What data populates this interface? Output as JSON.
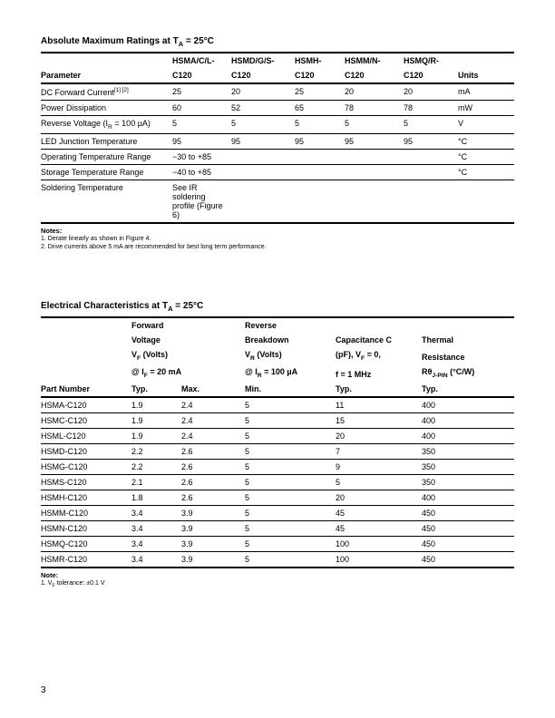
{
  "abs": {
    "title_prefix": "Absolute Maximum Ratings at T",
    "title_sub": "A",
    "title_suffix": " = 25°C",
    "headers": {
      "param": "Parameter",
      "c1a": "HSMA/C/L-",
      "c1b": "C120",
      "c2a": "HSMD/G/S-",
      "c2b": "C120",
      "c3a": "HSMH-",
      "c3b": "C120",
      "c4a": "HSMM/N-",
      "c4b": "C120",
      "c5a": "HSMQ/R-",
      "c5b": "C120",
      "units": "Units"
    },
    "rows": [
      {
        "p_pre": "DC Forward Current",
        "p_sup": "[1] [2]",
        "c1": "25",
        "c2": "20",
        "c3": "25",
        "c4": "20",
        "c5": "20",
        "u": "mA"
      },
      {
        "p": "Power Dissipation",
        "c1": "60",
        "c2": "52",
        "c3": "65",
        "c4": "78",
        "c5": "78",
        "u": "mW"
      },
      {
        "p_pre": "Reverse Voltage (I",
        "p_sub": "R",
        "p_suf": " = 100 µA)",
        "c1": "5",
        "c2": "5",
        "c3": "5",
        "c4": "5",
        "c5": "5",
        "u": "V"
      },
      {
        "p": "LED Junction Temperature",
        "c1": "95",
        "c2": "95",
        "c3": "95",
        "c4": "95",
        "c5": "95",
        "u": "°C"
      },
      {
        "p": "Operating Temperature Range",
        "c1": "−30 to +85",
        "u": "°C"
      },
      {
        "p": "Storage Temperature Range",
        "c1": "−40 to +85",
        "u": "°C"
      },
      {
        "p": "Soldering Temperature",
        "c1": "See IR soldering profile (Figure 6)"
      }
    ],
    "notes_title": "Notes:",
    "note1": "1.  Derate linearly as shown in Figure 4.",
    "note2": "2.  Drive currents above 5 mA are recommended for best long term performance."
  },
  "elec": {
    "title_prefix": "Electrical Characteristics at T",
    "title_sub": "A",
    "title_suffix": " = 25°C",
    "headers": {
      "pn": "Part Number",
      "fv1": "Forward",
      "fv2": "Voltage",
      "fv3a": "V",
      "fv3b": "F",
      "fv3c": " (Volts)",
      "fv4a": "@ I",
      "fv4b": "F",
      "fv4c": " = 20 mA",
      "typ": "Typ.",
      "max": "Max.",
      "rb1": "Reverse",
      "rb2": "Breakdown",
      "rb3a": "V",
      "rb3b": "R",
      "rb3c": " (Volts)",
      "rb4a": "@ I",
      "rb4b": "R",
      "rb4c": " = 100 µA",
      "min": "Min.",
      "cap1": "Capacitance C",
      "cap2a": "(pF), V",
      "cap2b": "F",
      "cap2c": " = 0,",
      "cap3": "f = 1 MHz",
      "cap4": "Typ.",
      "th1": "Thermal",
      "th2": "Resistance",
      "th3a": "Rθ",
      "th3b": "J-PIN",
      "th3c": " (°C/W)",
      "th4": "Typ."
    },
    "rows": [
      {
        "pn": "HSMA-C120",
        "typ": "1.9",
        "max": "2.4",
        "min": "5",
        "cap": "11",
        "th": "400"
      },
      {
        "pn": "HSMC-C120",
        "typ": "1.9",
        "max": "2.4",
        "min": "5",
        "cap": "15",
        "th": "400"
      },
      {
        "pn": "HSML-C120",
        "typ": "1.9",
        "max": "2.4",
        "min": "5",
        "cap": "20",
        "th": "400"
      },
      {
        "pn": "HSMD-C120",
        "typ": "2.2",
        "max": "2.6",
        "min": "5",
        "cap": "7",
        "th": "350"
      },
      {
        "pn": "HSMG-C120",
        "typ": "2.2",
        "max": "2.6",
        "min": "5",
        "cap": "9",
        "th": "350"
      },
      {
        "pn": "HSMS-C120",
        "typ": "2.1",
        "max": "2.6",
        "min": "5",
        "cap": "5",
        "th": "350"
      },
      {
        "pn": "HSMH-C120",
        "typ": "1.8",
        "max": "2.6",
        "min": "5",
        "cap": "20",
        "th": "400"
      },
      {
        "pn": "HSMM-C120",
        "typ": "3.4",
        "max": "3.9",
        "min": "5",
        "cap": "45",
        "th": "450"
      },
      {
        "pn": "HSMN-C120",
        "typ": "3.4",
        "max": "3.9",
        "min": "5",
        "cap": "45",
        "th": "450"
      },
      {
        "pn": "HSMQ-C120",
        "typ": "3.4",
        "max": "3.9",
        "min": "5",
        "cap": "100",
        "th": "450"
      },
      {
        "pn": "HSMR-C120",
        "typ": "3.4",
        "max": "3.9",
        "min": "5",
        "cap": "100",
        "th": "450"
      }
    ],
    "notes_title": "Note:",
    "note1_a": "1.  V",
    "note1_b": "F",
    "note1_c": " tolerance: ±0.1 V"
  },
  "page": "3"
}
